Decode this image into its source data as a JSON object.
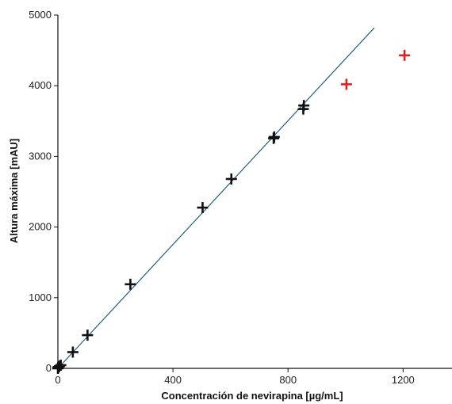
{
  "chart_data": {
    "type": "scatter",
    "xlabel": "Concentración de nevirapina [µg/mL]",
    "ylabel": "Altura máxima [mAU]",
    "xlim": [
      0,
      1370
    ],
    "ylim": [
      0,
      5000
    ],
    "xticks": [
      0,
      400,
      800,
      1200
    ],
    "yticks": [
      0,
      1000,
      2000,
      3000,
      4000,
      5000
    ],
    "grid": false,
    "colors": {
      "points": "#111111",
      "outliers": "#e02020",
      "fit": "#1f5f80"
    },
    "series": [
      {
        "marker": "plus",
        "points": [
          {
            "x": 0,
            "y": 0
          },
          {
            "x": 1,
            "y": 10
          },
          {
            "x": 2,
            "y": 20
          },
          {
            "x": 5,
            "y": 30
          },
          {
            "x": 10,
            "y": 45
          },
          {
            "x": 52,
            "y": 230
          },
          {
            "x": 103,
            "y": 470
          },
          {
            "x": 252,
            "y": 1190
          },
          {
            "x": 503,
            "y": 2275
          },
          {
            "x": 603,
            "y": 2680
          },
          {
            "x": 750,
            "y": 3255
          },
          {
            "x": 752,
            "y": 3275
          },
          {
            "x": 853,
            "y": 3670
          },
          {
            "x": 855,
            "y": 3720
          }
        ]
      },
      {
        "marker": "plus",
        "points": [
          {
            "x": 1003,
            "y": 4020
          },
          {
            "x": 1205,
            "y": 4430
          }
        ]
      }
    ],
    "fit_line": {
      "x": [
        0,
        1100
      ],
      "y": [
        0,
        4820
      ]
    }
  }
}
